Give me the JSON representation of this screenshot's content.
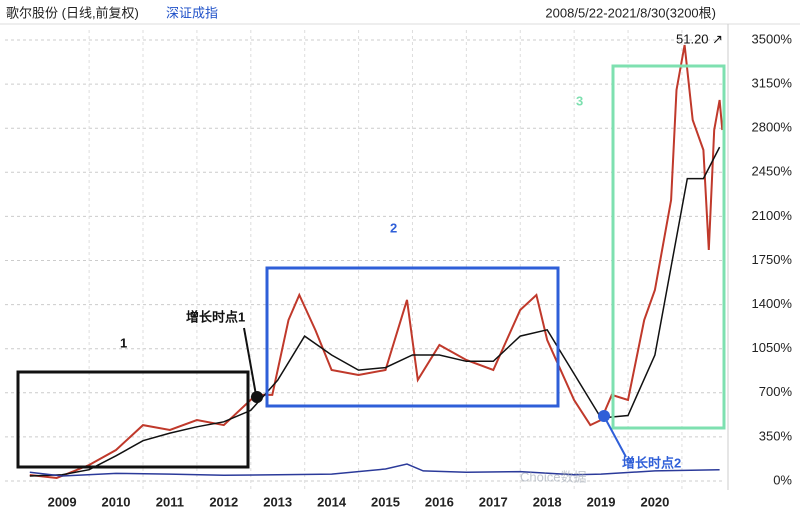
{
  "chart_data": {
    "type": "line",
    "title": "歌尔股份 (日线,前复权)",
    "subtitle": "深证成指",
    "date_range": "2008/5/22-2021/8/30(3200根)",
    "annotations": {
      "max_label": "51.20 ↗",
      "box1": "1",
      "box2": "2",
      "box3": "3",
      "point1": "增长时点1",
      "point2": "增长时点2",
      "watermark": "Choice数据"
    },
    "xlim": [
      2007.94,
      2021.3
    ],
    "xticks": [
      2009,
      2010,
      2011,
      2012,
      2013,
      2014,
      2015,
      2016,
      2017,
      2018,
      2019,
      2020
    ],
    "ylim": [
      0,
      3500
    ],
    "yticks": [
      {
        "value": 0,
        "label": "0%"
      },
      {
        "value": 350,
        "label": "350%"
      },
      {
        "value": 700,
        "label": "700%"
      },
      {
        "value": 1050,
        "label": "1050%"
      },
      {
        "value": 1400,
        "label": "1400%"
      },
      {
        "value": 1750,
        "label": "1750%"
      },
      {
        "value": 2100,
        "label": "2100%"
      },
      {
        "value": 2450,
        "label": "2450%"
      },
      {
        "value": 2800,
        "label": "2800%"
      },
      {
        "value": 3150,
        "label": "3150%"
      },
      {
        "value": 3500,
        "label": "3500%"
      }
    ],
    "grid": true,
    "series": [
      {
        "color": "#c0392b",
        "x": [
          2008.4,
          2008.9,
          2009.5,
          2010.0,
          2010.5,
          2011.0,
          2011.5,
          2012.0,
          2012.6,
          2012.9,
          2013.2,
          2013.4,
          2013.7,
          2014.0,
          2014.5,
          2015.0,
          2015.4,
          2015.6,
          2016.0,
          2016.5,
          2017.0,
          2017.5,
          2017.8,
          2018.0,
          2018.5,
          2018.8,
          2019.0,
          2019.2,
          2019.5,
          2019.8,
          2020.0,
          2020.3,
          2020.4,
          2020.55,
          2020.7,
          2020.9,
          2021.0,
          2021.1,
          2021.2,
          2021.25
        ],
        "values": [
          48,
          24,
          127,
          246,
          444,
          405,
          484,
          444,
          683,
          683,
          1278,
          1476,
          1198,
          881,
          841,
          881,
          1437,
          802,
          1079,
          960,
          881,
          1357,
          1476,
          1119,
          643,
          444,
          484,
          683,
          643,
          1278,
          1516,
          2230,
          3103,
          3460,
          2865,
          2627,
          1833,
          2786,
          3024,
          2786
        ]
      },
      {
        "color": "#111111",
        "x": [
          2008.4,
          2009.0,
          2009.5,
          2010.0,
          2010.5,
          2011.0,
          2011.5,
          2012.0,
          2012.5,
          2013.0,
          2013.5,
          2014.0,
          2014.5,
          2015.0,
          2015.5,
          2016.0,
          2016.5,
          2017.0,
          2017.5,
          2018.0,
          2018.5,
          2019.0,
          2019.5,
          2020.0,
          2020.3,
          2020.6,
          2020.9,
          2021.2
        ],
        "values": [
          40,
          50,
          90,
          200,
          320,
          380,
          430,
          470,
          560,
          800,
          1150,
          1000,
          880,
          900,
          1000,
          1000,
          950,
          950,
          1150,
          1200,
          850,
          500,
          520,
          1000,
          1700,
          2400,
          2400,
          2650
        ]
      },
      {
        "name": "深证成指",
        "color": "#2b3a9a",
        "x": [
          2008.4,
          2009.0,
          2010.0,
          2011.0,
          2012.0,
          2013.0,
          2014.0,
          2015.0,
          2015.4,
          2015.7,
          2016.5,
          2017.5,
          2018.5,
          2019.0,
          2020.0,
          2021.2
        ],
        "values": [
          70,
          40,
          60,
          55,
          45,
          50,
          55,
          95,
          135,
          80,
          70,
          75,
          50,
          55,
          80,
          90
        ]
      }
    ]
  }
}
